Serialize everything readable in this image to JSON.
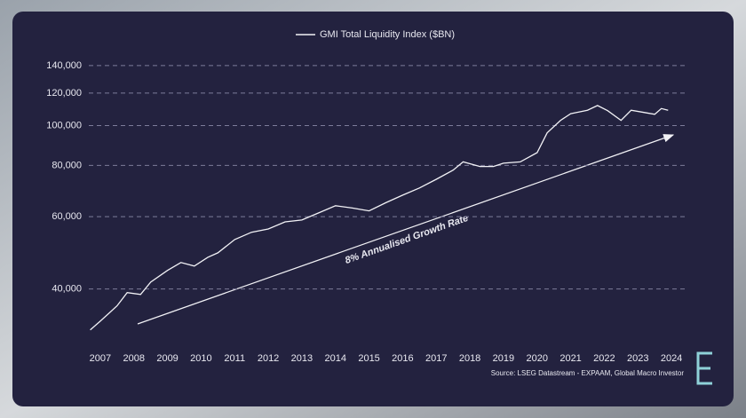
{
  "chart_data": {
    "type": "line",
    "series": [
      {
        "name": "GMI Total Liquidity Index ($BN)",
        "color": "#f2f2f6",
        "x": [
          2006.7,
          2007.0,
          2007.5,
          2007.8,
          2008.2,
          2008.5,
          2009.0,
          2009.4,
          2009.8,
          2010.2,
          2010.5,
          2011.0,
          2011.5,
          2012.0,
          2012.5,
          2013.0,
          2013.5,
          2014.0,
          2014.5,
          2015.0,
          2015.5,
          2016.0,
          2016.5,
          2017.0,
          2017.5,
          2017.8,
          2018.3,
          2018.7,
          2019.0,
          2019.5,
          2020.0,
          2020.3,
          2020.7,
          2021.0,
          2021.5,
          2021.8,
          2022.1,
          2022.5,
          2022.8,
          2023.2,
          2023.5,
          2023.7,
          2023.9
        ],
        "values": [
          31800,
          33400,
          36400,
          39200,
          38800,
          41600,
          44400,
          46400,
          45500,
          47800,
          49000,
          52800,
          55000,
          56000,
          58300,
          58900,
          61300,
          63800,
          63000,
          62000,
          64900,
          67700,
          70500,
          74000,
          77900,
          81600,
          79500,
          79500,
          81000,
          81600,
          85900,
          96000,
          103000,
          106900,
          109000,
          111900,
          108700,
          103000,
          109000,
          107600,
          106500,
          110000,
          109000
        ]
      }
    ],
    "xlim": [
      2006.5,
      2024.5
    ],
    "xticks": [
      2007,
      2008,
      2009,
      2010,
      2011,
      2012,
      2013,
      2014,
      2015,
      2016,
      2017,
      2018,
      2019,
      2020,
      2021,
      2022,
      2023,
      2024
    ],
    "ylim": [
      30000,
      150000
    ],
    "yticks": [
      {
        "value": 40000,
        "label": "40,000"
      },
      {
        "value": 60000,
        "label": "60,000"
      },
      {
        "value": 80000,
        "label": "80,000"
      },
      {
        "value": 100000,
        "label": "100,000"
      },
      {
        "value": 120000,
        "label": "120,000"
      },
      {
        "value": 140000,
        "label": "140,000"
      }
    ],
    "log_scale_y": true,
    "grid": true,
    "legend": "top",
    "annotation": "8% Annualised Growth Rate",
    "source": "Source: LSEG Datastream - EXPAAM, Global Macro Investor"
  }
}
